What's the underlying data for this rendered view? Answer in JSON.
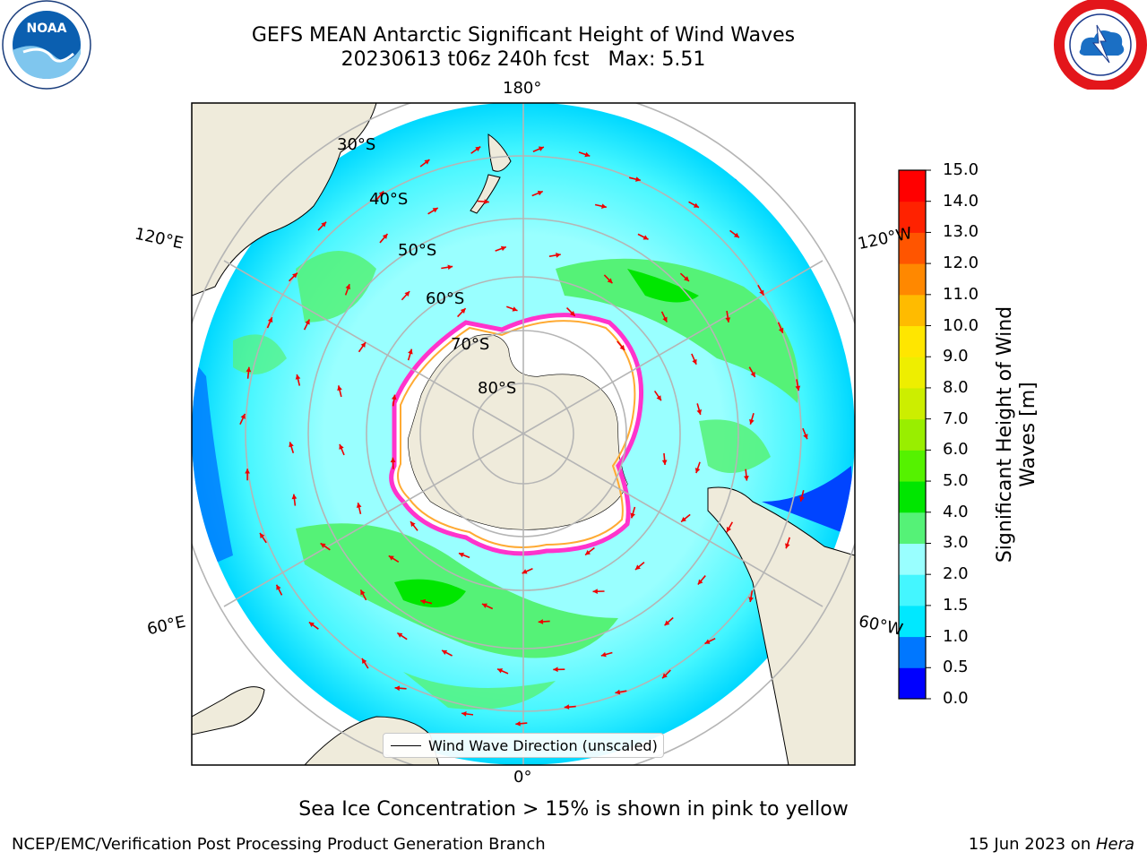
{
  "title": {
    "line1": "GEFS MEAN Antarctic Significant Height of Wind Waves",
    "line2": "20230613 t06z 240h fcst   Max: 5.51"
  },
  "logos": {
    "left": "noaa-logo",
    "right": "nws-logo"
  },
  "map": {
    "projection": "south-polar-stereographic",
    "longitude_labels": [
      "180°",
      "120°E",
      "120°W",
      "60°E",
      "60°W",
      "0°"
    ],
    "latitude_labels": [
      "30°S",
      "40°S",
      "50°S",
      "60°S",
      "70°S",
      "80°S"
    ],
    "colors": {
      "land": "#efebdb",
      "ice": "#ffffff",
      "grid": "#b5b5b5",
      "arrow": "#ee0000",
      "ice_edge": [
        "#ff33cc",
        "#ffaa33",
        "#ffff33"
      ]
    }
  },
  "colorbar": {
    "label": "Significant Height of Wind Waves [m]",
    "ticks": [
      "0.0",
      "0.5",
      "1.0",
      "1.5",
      "2.0",
      "3.0",
      "4.0",
      "5.0",
      "6.0",
      "7.0",
      "8.0",
      "9.0",
      "10.0",
      "11.0",
      "12.0",
      "13.0",
      "14.0",
      "15.0"
    ],
    "colors": [
      "#0000ff",
      "#0077ff",
      "#00e8ff",
      "#44f6ff",
      "#99ffff",
      "#55f277",
      "#00e600",
      "#55f200",
      "#99ee00",
      "#ccee00",
      "#eeee00",
      "#ffe600",
      "#ffbb00",
      "#ff8800",
      "#ff5500",
      "#ff2200",
      "#ff0000"
    ]
  },
  "legend": {
    "label": "Wind Wave Direction (unscaled)"
  },
  "footer": {
    "ice_note": "Sea Ice Concentration > 15% is shown in pink to yellow",
    "credit": "NCEP/EMC/Verification Post Processing Product Generation Branch",
    "date_prefix": "15 Jun 2023 on ",
    "date_host": "Hera"
  }
}
